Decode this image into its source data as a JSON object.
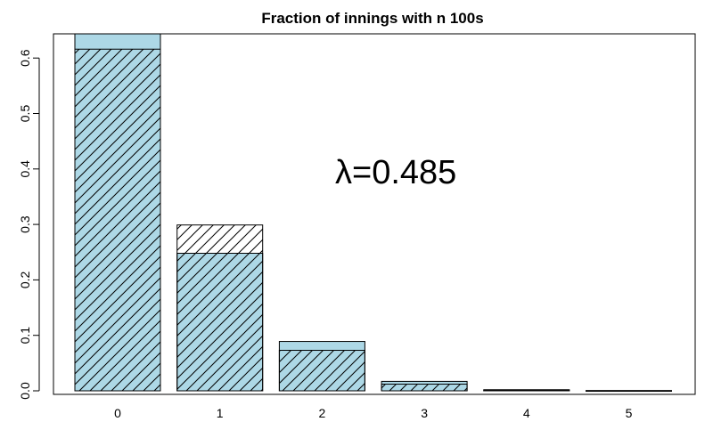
{
  "chart_data": {
    "type": "bar",
    "title": "Fraction of innings with n 100s",
    "xlabel": "",
    "ylabel": "",
    "categories": [
      "0",
      "1",
      "2",
      "3",
      "4",
      "5"
    ],
    "series": [
      {
        "style": "solid-lightblue",
        "fill": "#add8e6",
        "values": [
          0.645,
          0.248,
          0.089,
          0.017,
          0.002,
          0.0005
        ]
      },
      {
        "style": "hatched-outline",
        "fill": "none",
        "values": [
          0.616,
          0.299,
          0.073,
          0.012,
          0.001,
          0.0001
        ]
      }
    ],
    "yticks": [
      "0.0",
      "0.1",
      "0.2",
      "0.3",
      "0.4",
      "0.5",
      "0.6"
    ],
    "ylim": [
      0,
      0.645
    ],
    "grid": false,
    "annotation": {
      "symbol": "λ",
      "text": "=0.485"
    }
  }
}
